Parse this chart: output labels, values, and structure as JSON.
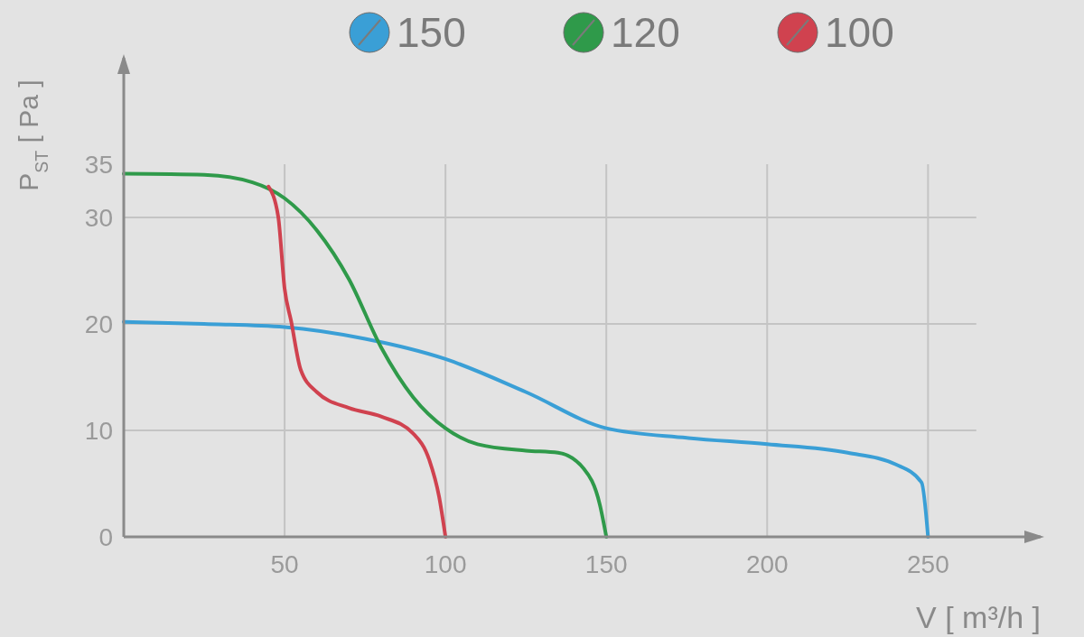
{
  "chart_data": {
    "type": "line",
    "xlabel": "V [ m³/h ]",
    "ylabel": "P$_{ST}$ [ Pa ]",
    "xlim": [
      0,
      285
    ],
    "ylim": [
      0,
      45
    ],
    "xticks": [
      50,
      100,
      150,
      200,
      250
    ],
    "yticks": [
      0,
      10,
      20,
      30,
      35
    ],
    "grid": true,
    "legend": "top right",
    "marker": "none",
    "line_style": "solid",
    "series": [
      {
        "name": "150",
        "color": "#3a9fd6",
        "x": [
          0,
          25,
          50,
          75,
          100,
          125,
          150,
          175,
          200,
          225,
          240,
          248,
          250
        ],
        "values": [
          20.2,
          20.0,
          19.7,
          18.6,
          16.7,
          13.6,
          10.2,
          9.3,
          8.7,
          7.9,
          6.8,
          5.1,
          0
        ]
      },
      {
        "name": "120",
        "color": "#2f9a4a",
        "x": [
          0,
          25,
          40,
          50,
          60,
          70,
          80,
          90,
          100,
          110,
          125,
          135,
          143,
          148,
          150
        ],
        "values": [
          34.1,
          34.0,
          33.3,
          31.8,
          28.8,
          24.2,
          17.8,
          13.1,
          10.2,
          8.7,
          8.1,
          7.9,
          6.4,
          3.0,
          0
        ]
      },
      {
        "name": "100",
        "color": "#d0424f",
        "x": [
          45,
          48,
          50,
          52,
          55,
          60,
          70,
          80,
          90,
          95,
          98,
          100
        ],
        "values": [
          32.9,
          30.1,
          23.3,
          20.3,
          15.7,
          13.6,
          12.1,
          11.3,
          9.7,
          7.2,
          3.8,
          0
        ]
      }
    ]
  }
}
